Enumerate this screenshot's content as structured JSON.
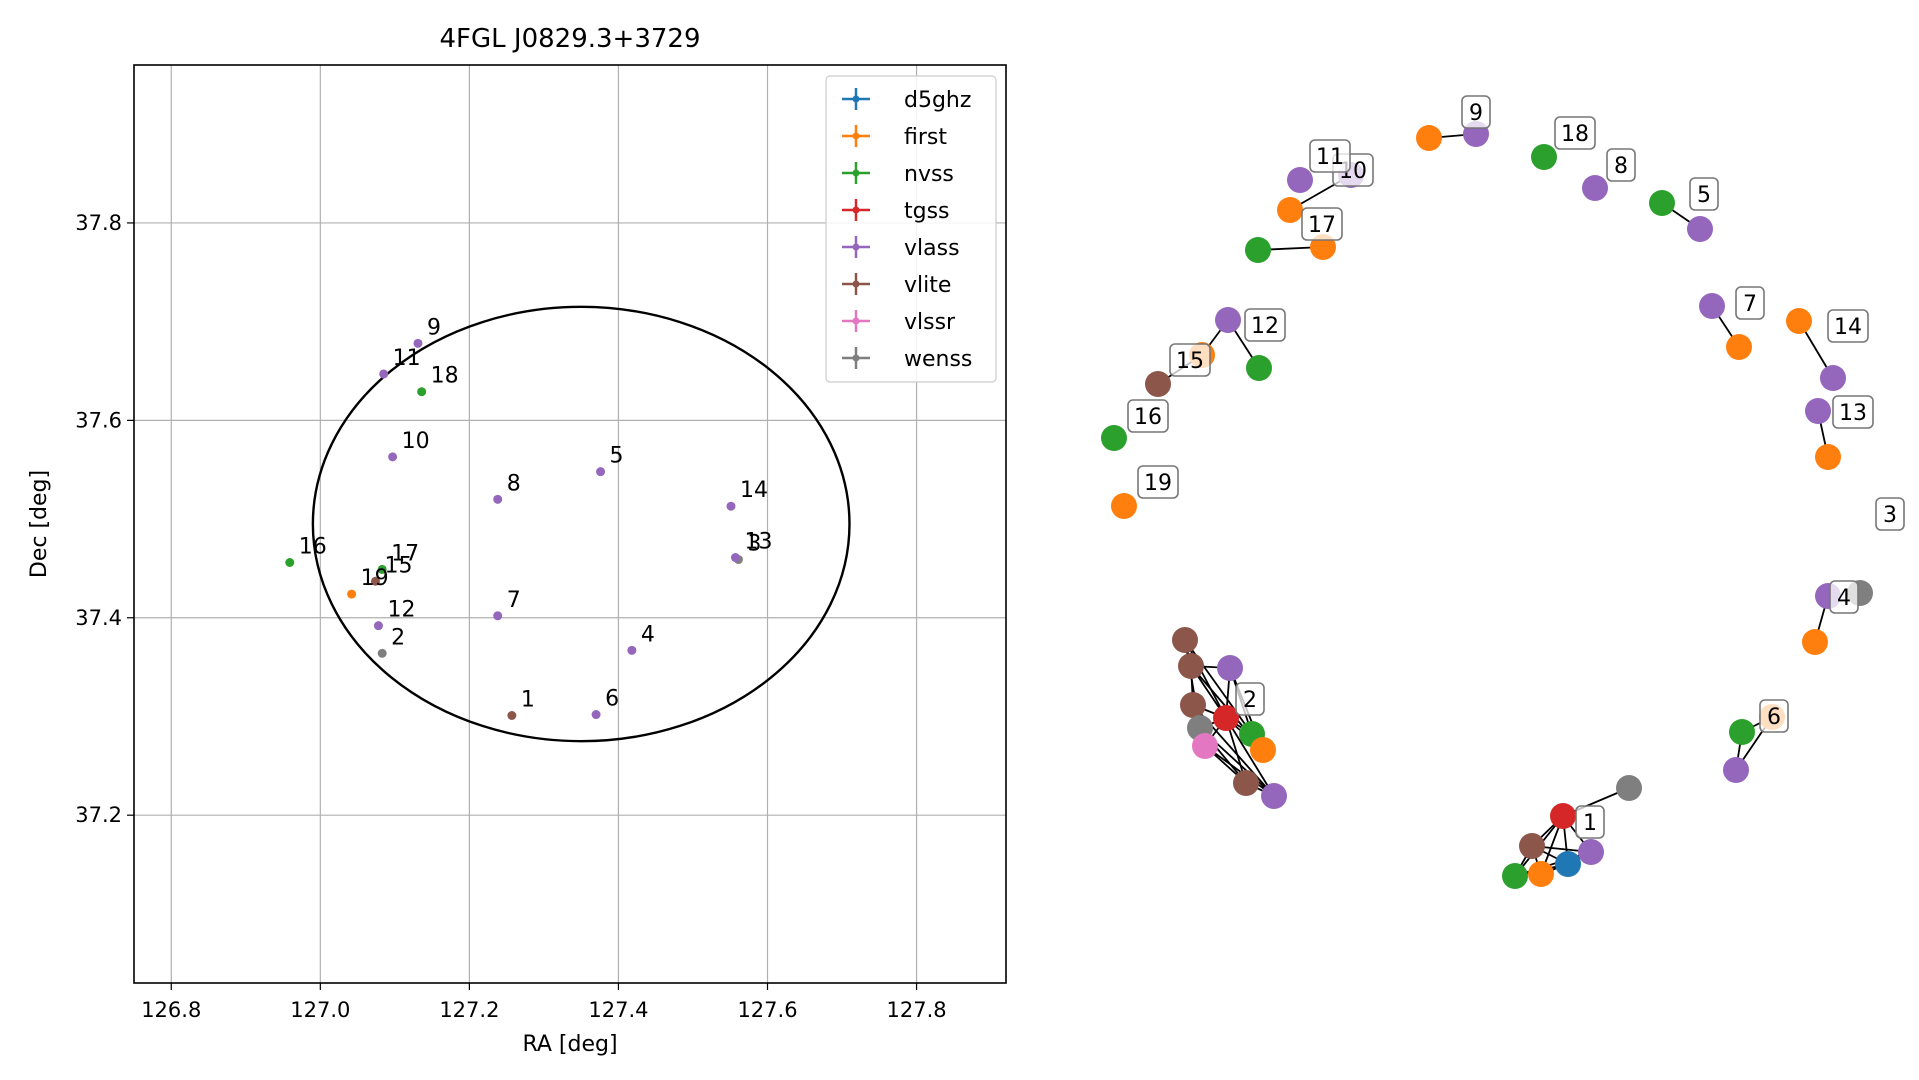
{
  "chart_data": [
    {
      "type": "scatter",
      "title": "4FGL J0829.3+3729",
      "xlabel": "RA [deg]",
      "ylabel": "Dec [deg]",
      "xlim": [
        126.75,
        127.92
      ],
      "ylim": [
        37.03,
        37.96
      ],
      "x_ticks": [
        126.8,
        127.0,
        127.2,
        127.4,
        127.6,
        127.8
      ],
      "x_tick_labels": [
        "126.8",
        "127.0",
        "127.2",
        "127.4",
        "127.6",
        "127.8"
      ],
      "y_ticks": [
        37.2,
        37.4,
        37.6,
        37.8
      ],
      "y_tick_labels": [
        "37.2",
        "37.4",
        "37.6",
        "37.8"
      ],
      "grid": true,
      "legend_position": "top-right",
      "legend": [
        "d5ghz",
        "first",
        "nvss",
        "tgss",
        "vlass",
        "vlite",
        "vlssr",
        "wenss"
      ],
      "colors": {
        "d5ghz": "#1f77b4",
        "first": "#ff7f0e",
        "nvss": "#2ca02c",
        "tgss": "#d62728",
        "vlass": "#9467bd",
        "vlite": "#8c564b",
        "vlssr": "#e377c2",
        "wenss": "#7f7f7f"
      },
      "ellipse": {
        "center": [
          127.35,
          37.495
        ],
        "semi_axes": [
          0.36,
          0.22
        ]
      },
      "points": [
        {
          "label": "1",
          "ra": 127.257,
          "dec": 37.301,
          "survey": "vlite"
        },
        {
          "label": "2",
          "ra": 127.083,
          "dec": 37.364,
          "survey": "wenss"
        },
        {
          "label": "3",
          "ra": 127.561,
          "dec": 37.459,
          "survey": "wenss"
        },
        {
          "label": "4",
          "ra": 127.418,
          "dec": 37.367,
          "survey": "vlass"
        },
        {
          "label": "5",
          "ra": 127.376,
          "dec": 37.548,
          "survey": "vlass"
        },
        {
          "label": "6",
          "ra": 127.37,
          "dec": 37.302,
          "survey": "vlass"
        },
        {
          "label": "7",
          "ra": 127.238,
          "dec": 37.402,
          "survey": "vlass"
        },
        {
          "label": "8",
          "ra": 127.238,
          "dec": 37.52,
          "survey": "vlass"
        },
        {
          "label": "9",
          "ra": 127.131,
          "dec": 37.678,
          "survey": "vlass"
        },
        {
          "label": "10",
          "ra": 127.097,
          "dec": 37.563,
          "survey": "vlass"
        },
        {
          "label": "11",
          "ra": 127.085,
          "dec": 37.647,
          "survey": "vlass"
        },
        {
          "label": "12",
          "ra": 127.078,
          "dec": 37.392,
          "survey": "vlass"
        },
        {
          "label": "13",
          "ra": 127.557,
          "dec": 37.461,
          "survey": "vlass"
        },
        {
          "label": "14",
          "ra": 127.551,
          "dec": 37.513,
          "survey": "vlass"
        },
        {
          "label": "15",
          "ra": 127.074,
          "dec": 37.437,
          "survey": "vlite"
        },
        {
          "label": "16",
          "ra": 126.959,
          "dec": 37.456,
          "survey": "nvss"
        },
        {
          "label": "17",
          "ra": 127.083,
          "dec": 37.449,
          "survey": "nvss"
        },
        {
          "label": "18",
          "ra": 127.136,
          "dec": 37.629,
          "survey": "nvss"
        },
        {
          "label": "19",
          "ra": 127.042,
          "dec": 37.424,
          "survey": "first"
        }
      ]
    },
    {
      "type": "graph",
      "labels": [
        "1",
        "2",
        "3",
        "4",
        "5",
        "6",
        "7",
        "8",
        "9",
        "10",
        "11",
        "12",
        "13",
        "14",
        "15",
        "16",
        "17",
        "18",
        "19"
      ],
      "nodes": [
        {
          "id": "c1_tgss",
          "survey": "tgss"
        },
        {
          "id": "c1_vlass",
          "survey": "vlass"
        },
        {
          "id": "c1_d5ghz",
          "survey": "d5ghz"
        },
        {
          "id": "c1_vlite",
          "survey": "vlite"
        },
        {
          "id": "c1_nvss",
          "survey": "nvss"
        },
        {
          "id": "c1_first",
          "survey": "first"
        },
        {
          "id": "c1_wenss",
          "survey": "wenss"
        },
        {
          "id": "c2_tgss",
          "survey": "tgss"
        },
        {
          "id": "c2_vlass1",
          "survey": "vlass"
        },
        {
          "id": "c2_vlass2",
          "survey": "vlass"
        },
        {
          "id": "c2_vlite1",
          "survey": "vlite"
        },
        {
          "id": "c2_vlite2",
          "survey": "vlite"
        },
        {
          "id": "c2_vlite3",
          "survey": "vlite"
        },
        {
          "id": "c2_vlite4",
          "survey": "vlite"
        },
        {
          "id": "c2_wenss",
          "survey": "wenss"
        },
        {
          "id": "c2_vlssr",
          "survey": "vlssr"
        },
        {
          "id": "c2_nvss",
          "survey": "nvss"
        },
        {
          "id": "c2_first",
          "survey": "first"
        },
        {
          "id": "c3_wenss",
          "survey": "wenss"
        },
        {
          "id": "c4_vlass",
          "survey": "vlass"
        },
        {
          "id": "c4_first",
          "survey": "first"
        },
        {
          "id": "c5_vlass",
          "survey": "vlass"
        },
        {
          "id": "c5_nvss",
          "survey": "nvss"
        },
        {
          "id": "c6_first",
          "survey": "first"
        },
        {
          "id": "c6_nvss",
          "survey": "nvss"
        },
        {
          "id": "c6_vlass",
          "survey": "vlass"
        },
        {
          "id": "c7_vlass",
          "survey": "vlass"
        },
        {
          "id": "c7_first",
          "survey": "first"
        },
        {
          "id": "c8_vlass",
          "survey": "vlass"
        },
        {
          "id": "c9_vlass",
          "survey": "vlass"
        },
        {
          "id": "c9_first",
          "survey": "first"
        },
        {
          "id": "c10_vlass",
          "survey": "vlass"
        },
        {
          "id": "c11_vlass",
          "survey": "vlass"
        },
        {
          "id": "c11_first",
          "survey": "first"
        },
        {
          "id": "c12_vlass",
          "survey": "vlass"
        },
        {
          "id": "c12_nvss",
          "survey": "nvss"
        },
        {
          "id": "c13_vlass",
          "survey": "vlass"
        },
        {
          "id": "c13_first",
          "survey": "first"
        },
        {
          "id": "c14_first",
          "survey": "first"
        },
        {
          "id": "c14_vlass",
          "survey": "vlass"
        },
        {
          "id": "c15_first",
          "survey": "first"
        },
        {
          "id": "c15_vlite",
          "survey": "vlite"
        },
        {
          "id": "c16_nvss",
          "survey": "nvss"
        },
        {
          "id": "c17_first",
          "survey": "first"
        },
        {
          "id": "c17_nvss",
          "survey": "nvss"
        },
        {
          "id": "c18_nvss",
          "survey": "nvss"
        },
        {
          "id": "c19_first",
          "survey": "first"
        }
      ]
    }
  ]
}
